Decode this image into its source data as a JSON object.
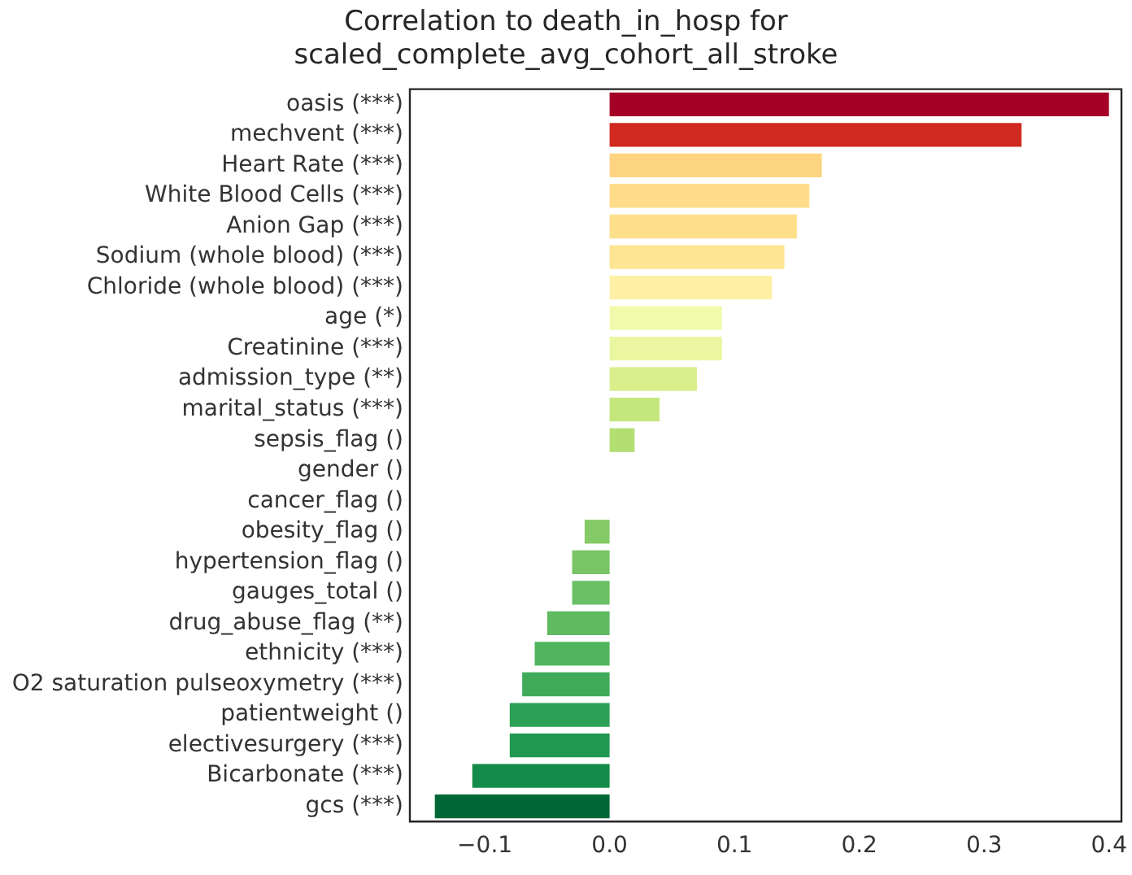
{
  "chart_data": {
    "type": "bar",
    "orientation": "horizontal",
    "title": "Correlation to death_in_hosp for\nscaled_complete_avg_cohort_all_stroke",
    "categories": [
      "oasis (***)",
      "mechvent (***)",
      "Heart Rate (***)",
      "White Blood Cells (***)",
      "Anion Gap (***)",
      "Sodium (whole blood) (***)",
      "Chloride (whole blood) (***)",
      "age (*)",
      "Creatinine (***)",
      "admission_type (**)",
      "marital_status (***)",
      "sepsis_flag ()",
      "gender ()",
      "cancer_flag ()",
      "obesity_flag ()",
      "hypertension_flag ()",
      "gauges_total ()",
      "drug_abuse_flag (**)",
      "ethnicity (***)",
      "O2 saturation pulseoxymetry (***)",
      "patientweight ()",
      "electivesurgery (***)",
      "Bicarbonate (***)",
      "gcs (***)"
    ],
    "values": [
      0.4,
      0.33,
      0.17,
      0.16,
      0.15,
      0.14,
      0.13,
      0.09,
      0.09,
      0.07,
      0.04,
      0.02,
      0,
      0,
      -0.02,
      -0.03,
      -0.03,
      -0.05,
      -0.06,
      -0.07,
      -0.08,
      -0.08,
      -0.11,
      -0.14
    ],
    "colors": [
      "#a50026",
      "#d0291f",
      "#fdd47f",
      "#fedc88",
      "#fee08b",
      "#fee593",
      "#fff0a6",
      "#f1f9ab",
      "#eaf6a0",
      "#d9ef8b",
      "#c4e67c",
      "#b3df72",
      "#a5d86a",
      "#96d268",
      "#84ca66",
      "#78c565",
      "#6bbf64",
      "#5fba61",
      "#52b45e",
      "#3faa59",
      "#2ca055",
      "#1f9950",
      "#138c4a",
      "#006837"
    ],
    "xlim": [
      -0.16,
      0.41
    ],
    "xticks": [
      {
        "value": -0.1,
        "label": "−0.1"
      },
      {
        "value": 0,
        "label": "0.0"
      },
      0.1,
      0.2,
      0.3,
      0.4
    ],
    "grid": false,
    "legend": false
  }
}
